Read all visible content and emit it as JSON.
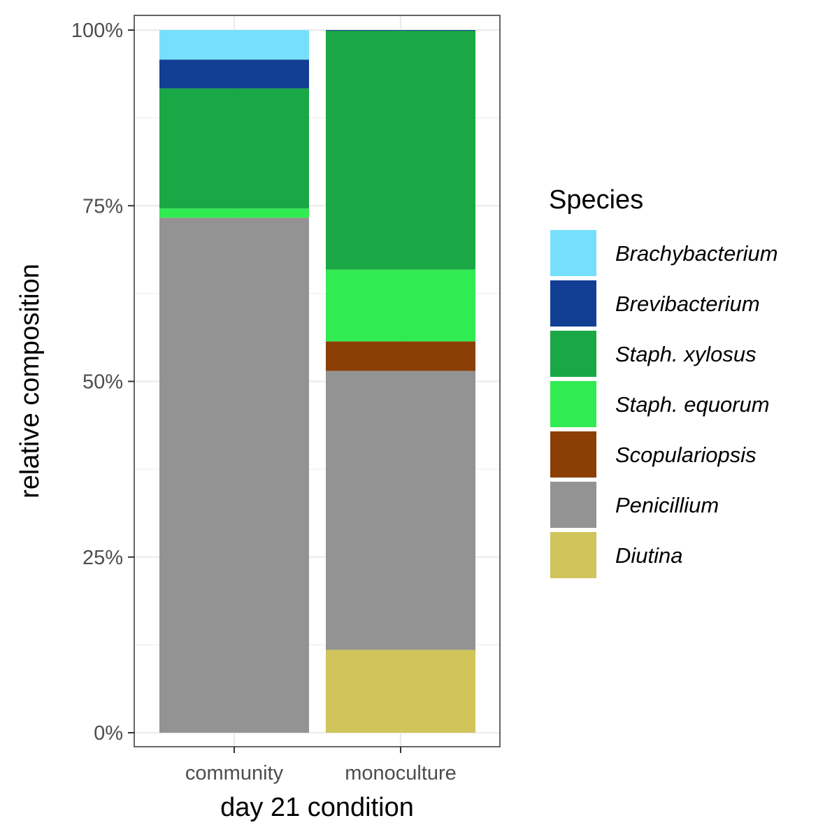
{
  "chart_data": {
    "type": "bar",
    "stacked": true,
    "normalized": true,
    "categories": [
      "community",
      "monoculture"
    ],
    "series": [
      {
        "name": "Brachybacterium",
        "color": "#76E0FC",
        "values": [
          0.042,
          0.0
        ]
      },
      {
        "name": "Brevibacterium",
        "color": "#123E94",
        "values": [
          0.041,
          0.001
        ]
      },
      {
        "name": "Staph. xylosus",
        "color": "#19A845",
        "values": [
          0.171,
          0.34
        ]
      },
      {
        "name": "Staph. equorum",
        "color": "#31EB52",
        "values": [
          0.013,
          0.102
        ]
      },
      {
        "name": "Scopulariopsis",
        "color": "#8B3F04",
        "values": [
          0.0,
          0.042
        ]
      },
      {
        "name": "Penicillium",
        "color": "#939393",
        "values": [
          0.733,
          0.397
        ]
      },
      {
        "name": "Diutina",
        "color": "#D0C45A",
        "values": [
          0.0,
          0.118
        ]
      }
    ],
    "stack_order_bottom_to_top": [
      "Diutina",
      "Penicillium",
      "Scopulariopsis",
      "Staph. equorum",
      "Staph. xylosus",
      "Brevibacterium",
      "Brachybacterium"
    ],
    "xlabel": "day 21 condition",
    "ylabel": "relative composition",
    "ylim": [
      0,
      1
    ],
    "y_ticks": [
      {
        "value": 0,
        "label": "0%"
      },
      {
        "value": 0.25,
        "label": "25%"
      },
      {
        "value": 0.5,
        "label": "50%"
      },
      {
        "value": 0.75,
        "label": "75%"
      },
      {
        "value": 1,
        "label": "100%"
      }
    ],
    "legend": {
      "title": "Species",
      "placement": "right"
    },
    "grid": true
  }
}
